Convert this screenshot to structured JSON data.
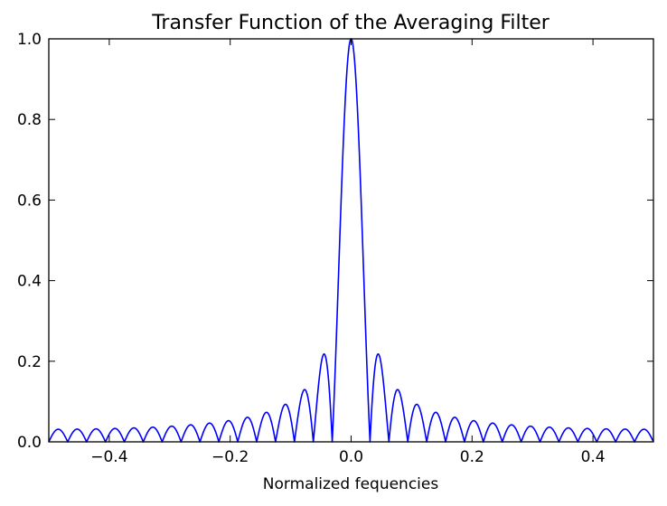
{
  "chart_data": {
    "type": "line",
    "title": "Transfer Function of the Averaging Filter",
    "xlabel": "Normalized fequencies",
    "ylabel": "",
    "xlim": [
      -0.5,
      0.5
    ],
    "ylim": [
      0.0,
      1.0
    ],
    "xticks": [
      -0.4,
      -0.2,
      0.0,
      0.2,
      0.4
    ],
    "xtick_labels": [
      "−0.4",
      "−0.2",
      "0.0",
      "0.2",
      "0.4"
    ],
    "yticks": [
      0.0,
      0.2,
      0.4,
      0.6,
      0.8,
      1.0
    ],
    "ytick_labels": [
      "0.0",
      "0.2",
      "0.4",
      "0.6",
      "0.8",
      "1.0"
    ],
    "grid": false,
    "legend": "none",
    "series": [
      {
        "color": "#0000ff",
        "function": "abs(sin(pi*N*f)/(N*sin(pi*f)))",
        "N": 32
      }
    ]
  }
}
